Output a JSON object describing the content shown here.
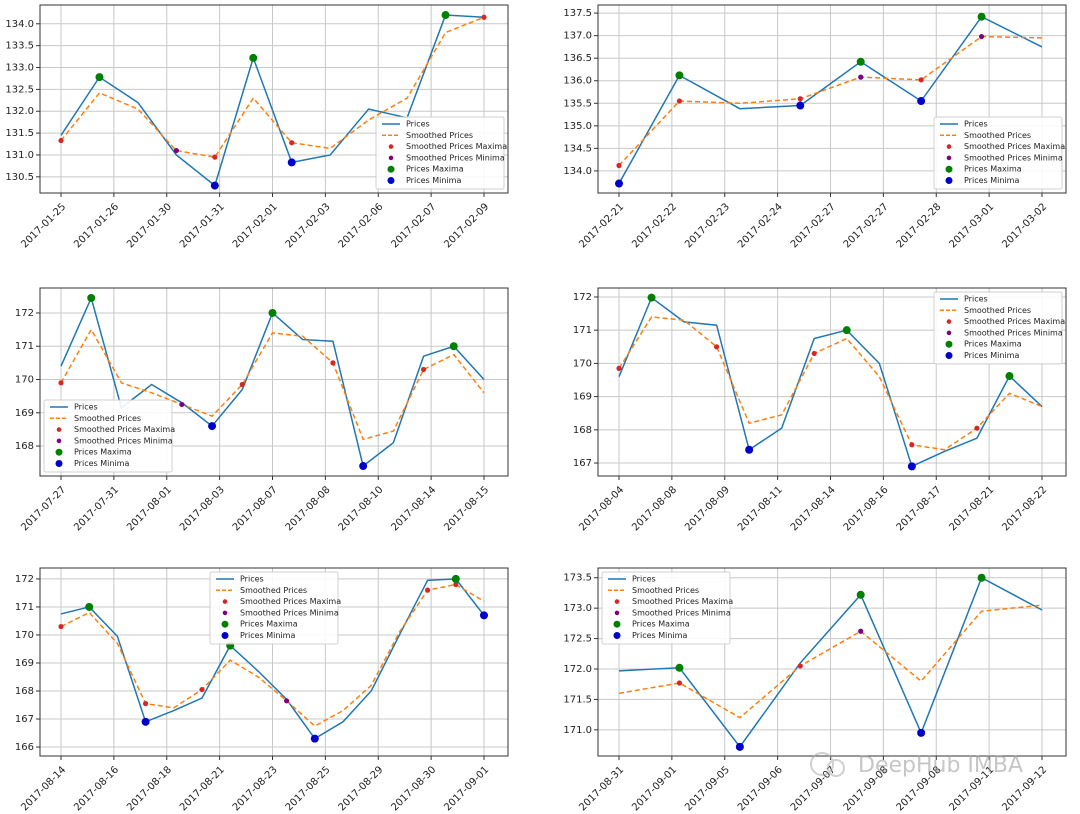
{
  "chart_data": [
    {
      "type": "line",
      "xtick_labels": [
        "2017-01-25",
        "2017-01-26",
        "2017-01-30",
        "2017-01-31",
        "2017-02-01",
        "2017-02-03",
        "2017-02-06",
        "2017-02-07",
        "2017-02-09"
      ],
      "ylim": [
        130.13,
        134.43
      ],
      "yticks": [
        130.5,
        {
          "value": 131,
          "label": "131.0"
        },
        131.5,
        {
          "value": 132,
          "label": "132.0"
        },
        132.5,
        {
          "value": 133,
          "label": "133.0"
        },
        133.5,
        {
          "value": 134,
          "label": "134.0"
        }
      ],
      "grid": true,
      "legend": "lower right",
      "series": [
        {
          "name": "Prices",
          "color": "#1f77b4",
          "style": "line",
          "values": [
            131.45,
            132.78,
            132.2,
            131.0,
            130.3,
            133.22,
            130.83,
            131.0,
            132.05,
            131.85,
            134.2,
            134.15
          ]
        },
        {
          "name": "Smoothed Prices",
          "color": "#ff7f0e",
          "style": "dashed",
          "values": [
            131.33,
            132.42,
            132.05,
            131.1,
            130.95,
            132.3,
            131.28,
            131.15,
            131.8,
            132.3,
            133.8,
            134.15
          ]
        },
        {
          "name": "Smoothed Prices Maxima",
          "color": "#d62728",
          "style": "small-marker",
          "values": [
            131.33,
            null,
            null,
            null,
            130.95,
            null,
            131.28,
            null,
            null,
            null,
            null,
            134.15
          ]
        },
        {
          "name": "Smoothed Prices Minima",
          "color": "#800080",
          "style": "small-marker",
          "values": [
            null,
            null,
            null,
            131.1,
            null,
            null,
            null,
            null,
            null,
            null,
            null,
            null
          ]
        },
        {
          "name": "Prices Maxima",
          "color": "#008000",
          "style": "marker",
          "values": [
            null,
            132.78,
            null,
            null,
            null,
            133.22,
            null,
            null,
            null,
            null,
            134.2,
            null
          ]
        },
        {
          "name": "Prices Minima",
          "color": "#0000cd",
          "style": "marker",
          "values": [
            null,
            null,
            null,
            null,
            130.3,
            null,
            130.83,
            null,
            null,
            null,
            null,
            null
          ]
        }
      ]
    },
    {
      "type": "line",
      "xtick_labels": [
        "2017-02-21",
        "2017-02-22",
        "2017-02-23",
        "2017-02-24",
        "2017-02-27",
        "2017-02-27",
        "2017-02-28",
        "2017-03-01",
        "2017-03-02"
      ],
      "ylim": [
        133.51,
        137.68
      ],
      "yticks": [
        {
          "value": 134,
          "label": "134.0"
        },
        134.5,
        {
          "value": 135,
          "label": "135.0"
        },
        135.5,
        {
          "value": 136,
          "label": "136.0"
        },
        136.5,
        {
          "value": 137,
          "label": "137.0"
        },
        137.5
      ],
      "grid": true,
      "legend": "lower right",
      "series": [
        {
          "name": "Prices",
          "color": "#1f77b4",
          "style": "line",
          "values": [
            133.72,
            136.12,
            135.38,
            135.45,
            136.42,
            135.55,
            137.42,
            136.75
          ]
        },
        {
          "name": "Smoothed Prices",
          "color": "#ff7f0e",
          "style": "dashed",
          "values": [
            134.12,
            135.55,
            135.5,
            135.6,
            136.08,
            136.02,
            136.98,
            136.95
          ]
        },
        {
          "name": "Smoothed Prices Maxima",
          "color": "#d62728",
          "style": "small-marker",
          "values": [
            134.12,
            135.55,
            null,
            135.6,
            null,
            136.02,
            null,
            null
          ]
        },
        {
          "name": "Smoothed Prices Minima",
          "color": "#800080",
          "style": "small-marker",
          "values": [
            null,
            null,
            null,
            null,
            136.08,
            null,
            136.98,
            null
          ]
        },
        {
          "name": "Prices Maxima",
          "color": "#008000",
          "style": "marker",
          "values": [
            null,
            136.12,
            null,
            null,
            136.42,
            null,
            137.42,
            null
          ]
        },
        {
          "name": "Prices Minima",
          "color": "#0000cd",
          "style": "marker",
          "values": [
            133.72,
            null,
            null,
            135.45,
            null,
            135.55,
            null,
            null
          ]
        }
      ]
    },
    {
      "type": "line",
      "xtick_labels": [
        "2017-07-27",
        "2017-07-31",
        "2017-08-01",
        "2017-08-03",
        "2017-08-07",
        "2017-08-08",
        "2017-08-10",
        "2017-08-14",
        "2017-08-15"
      ],
      "ylim": [
        167.1,
        172.75
      ],
      "yticks": [
        168,
        169,
        170,
        171,
        172
      ],
      "grid": true,
      "legend": "lower left",
      "series": [
        {
          "name": "Prices",
          "color": "#1f77b4",
          "style": "line",
          "values": [
            170.4,
            172.45,
            169.15,
            169.85,
            169.3,
            168.6,
            169.7,
            172.0,
            171.2,
            171.15,
            167.4,
            168.1,
            170.7,
            171.0,
            170.0
          ]
        },
        {
          "name": "Smoothed Prices",
          "color": "#ff7f0e",
          "style": "dashed",
          "values": [
            169.9,
            171.5,
            169.9,
            169.6,
            169.25,
            168.9,
            169.85,
            171.4,
            171.3,
            170.5,
            168.2,
            168.45,
            170.3,
            170.75,
            169.6
          ]
        },
        {
          "name": "Smoothed Prices Maxima",
          "color": "#d62728",
          "style": "small-marker",
          "values": [
            169.9,
            null,
            null,
            null,
            null,
            null,
            169.85,
            null,
            null,
            170.5,
            null,
            null,
            170.3,
            null,
            null
          ]
        },
        {
          "name": "Smoothed Prices Minima",
          "color": "#800080",
          "style": "small-marker",
          "values": [
            null,
            null,
            null,
            null,
            169.25,
            null,
            null,
            null,
            null,
            null,
            null,
            null,
            null,
            null,
            null
          ]
        },
        {
          "name": "Prices Maxima",
          "color": "#008000",
          "style": "marker",
          "values": [
            null,
            172.45,
            null,
            null,
            null,
            null,
            null,
            172.0,
            null,
            null,
            null,
            null,
            null,
            171.0,
            null
          ]
        },
        {
          "name": "Prices Minima",
          "color": "#0000cd",
          "style": "marker",
          "values": [
            null,
            null,
            null,
            null,
            null,
            168.6,
            null,
            null,
            null,
            null,
            167.4,
            null,
            null,
            null,
            null
          ]
        }
      ]
    },
    {
      "type": "line",
      "xtick_labels": [
        "2017-08-04",
        "2017-08-08",
        "2017-08-09",
        "2017-08-11",
        "2017-08-14",
        "2017-08-16",
        "2017-08-17",
        "2017-08-21",
        "2017-08-22"
      ],
      "ylim": [
        166.61,
        172.27
      ],
      "yticks": [
        167,
        168,
        169,
        170,
        171,
        172
      ],
      "grid": true,
      "legend": "upper right",
      "series": [
        {
          "name": "Prices",
          "color": "#1f77b4",
          "style": "line",
          "values": [
            169.6,
            171.98,
            171.25,
            171.15,
            167.4,
            168.05,
            170.75,
            171.0,
            170.0,
            166.9,
            167.35,
            167.75,
            169.62,
            168.7
          ]
        },
        {
          "name": "Smoothed Prices",
          "color": "#ff7f0e",
          "style": "dashed",
          "values": [
            169.85,
            171.4,
            171.3,
            170.5,
            168.2,
            168.45,
            170.3,
            170.75,
            169.6,
            167.55,
            167.4,
            168.05,
            169.1,
            168.7
          ]
        },
        {
          "name": "Smoothed Prices Maxima",
          "color": "#d62728",
          "style": "small-marker",
          "values": [
            169.85,
            null,
            null,
            170.5,
            null,
            null,
            170.3,
            null,
            null,
            167.55,
            null,
            168.05,
            null,
            null
          ]
        },
        {
          "name": "Smoothed Prices Minima",
          "color": "#800080",
          "style": "small-marker",
          "values": [
            null,
            null,
            null,
            null,
            null,
            null,
            null,
            null,
            null,
            null,
            null,
            null,
            null,
            null
          ]
        },
        {
          "name": "Prices Maxima",
          "color": "#008000",
          "style": "marker",
          "values": [
            null,
            171.98,
            null,
            null,
            null,
            null,
            null,
            171.0,
            null,
            null,
            null,
            null,
            169.62,
            null
          ]
        },
        {
          "name": "Prices Minima",
          "color": "#0000cd",
          "style": "marker",
          "values": [
            null,
            null,
            null,
            null,
            167.4,
            null,
            null,
            null,
            null,
            166.9,
            null,
            null,
            null,
            null
          ]
        }
      ]
    },
    {
      "type": "line",
      "xtick_labels": [
        "2017-08-14",
        "2017-08-16",
        "2017-08-18",
        "2017-08-21",
        "2017-08-23",
        "2017-08-25",
        "2017-08-29",
        "2017-08-30",
        "2017-09-01"
      ],
      "ylim": [
        165.68,
        172.39
      ],
      "yticks": [
        166,
        167,
        168,
        169,
        170,
        171,
        172
      ],
      "grid": true,
      "legend": "upper center",
      "series": [
        {
          "name": "Prices",
          "color": "#1f77b4",
          "style": "line",
          "values": [
            170.75,
            171.0,
            169.95,
            166.9,
            167.3,
            167.75,
            169.62,
            168.7,
            167.7,
            166.3,
            166.9,
            168.0,
            170.0,
            171.95,
            172.0,
            170.7
          ]
        },
        {
          "name": "Smoothed Prices",
          "color": "#ff7f0e",
          "style": "dashed",
          "values": [
            170.3,
            170.8,
            169.7,
            167.55,
            167.4,
            168.05,
            169.1,
            168.5,
            167.65,
            166.75,
            167.3,
            168.2,
            170.1,
            171.6,
            171.8,
            171.2
          ]
        },
        {
          "name": "Smoothed Prices Maxima",
          "color": "#d62728",
          "style": "small-marker",
          "values": [
            170.3,
            null,
            null,
            167.55,
            null,
            168.05,
            null,
            null,
            null,
            null,
            null,
            null,
            null,
            171.6,
            171.8,
            null
          ]
        },
        {
          "name": "Smoothed Prices Minima",
          "color": "#800080",
          "style": "small-marker",
          "values": [
            null,
            null,
            null,
            null,
            null,
            null,
            null,
            null,
            167.65,
            null,
            null,
            null,
            null,
            null,
            null,
            null
          ]
        },
        {
          "name": "Prices Maxima",
          "color": "#008000",
          "style": "marker",
          "values": [
            null,
            171.0,
            null,
            null,
            null,
            null,
            169.62,
            null,
            null,
            null,
            null,
            null,
            null,
            null,
            172.0,
            null
          ]
        },
        {
          "name": "Prices Minima",
          "color": "#0000cd",
          "style": "marker",
          "values": [
            null,
            null,
            null,
            166.9,
            null,
            null,
            null,
            null,
            null,
            166.3,
            null,
            null,
            null,
            null,
            null,
            170.7
          ]
        }
      ]
    },
    {
      "type": "line",
      "xtick_labels": [
        "2017-08-31",
        "2017-09-01",
        "2017-09-05",
        "2017-09-06",
        "2017-09-07",
        "2017-09-08",
        "2017-09-08",
        "2017-09-11",
        "2017-09-12"
      ],
      "ylim": [
        170.57,
        173.66
      ],
      "yticks": [
        {
          "value": 171,
          "label": "171.0"
        },
        171.5,
        {
          "value": 172,
          "label": "172.0"
        },
        172.5,
        {
          "value": 173,
          "label": "173.0"
        },
        173.5
      ],
      "grid": true,
      "legend": "upper left",
      "series": [
        {
          "name": "Prices",
          "color": "#1f77b4",
          "style": "line",
          "values": [
            171.97,
            172.02,
            170.72,
            172.1,
            173.22,
            170.95,
            173.5,
            172.97
          ]
        },
        {
          "name": "Smoothed Prices",
          "color": "#ff7f0e",
          "style": "dashed",
          "values": [
            171.6,
            171.77,
            171.2,
            172.05,
            172.62,
            171.8,
            172.95,
            173.05
          ]
        },
        {
          "name": "Smoothed Prices Maxima",
          "color": "#d62728",
          "style": "small-marker",
          "values": [
            null,
            171.77,
            null,
            172.05,
            null,
            null,
            null,
            null
          ]
        },
        {
          "name": "Smoothed Prices Minima",
          "color": "#800080",
          "style": "small-marker",
          "values": [
            null,
            null,
            null,
            null,
            172.62,
            null,
            null,
            null
          ]
        },
        {
          "name": "Prices Maxima",
          "color": "#008000",
          "style": "marker",
          "values": [
            null,
            172.02,
            null,
            null,
            173.22,
            null,
            173.5,
            null
          ]
        },
        {
          "name": "Prices Minima",
          "color": "#0000cd",
          "style": "marker",
          "values": [
            null,
            null,
            170.72,
            null,
            null,
            170.95,
            null,
            null
          ]
        }
      ]
    }
  ],
  "watermark": "DeepHub IMBA"
}
